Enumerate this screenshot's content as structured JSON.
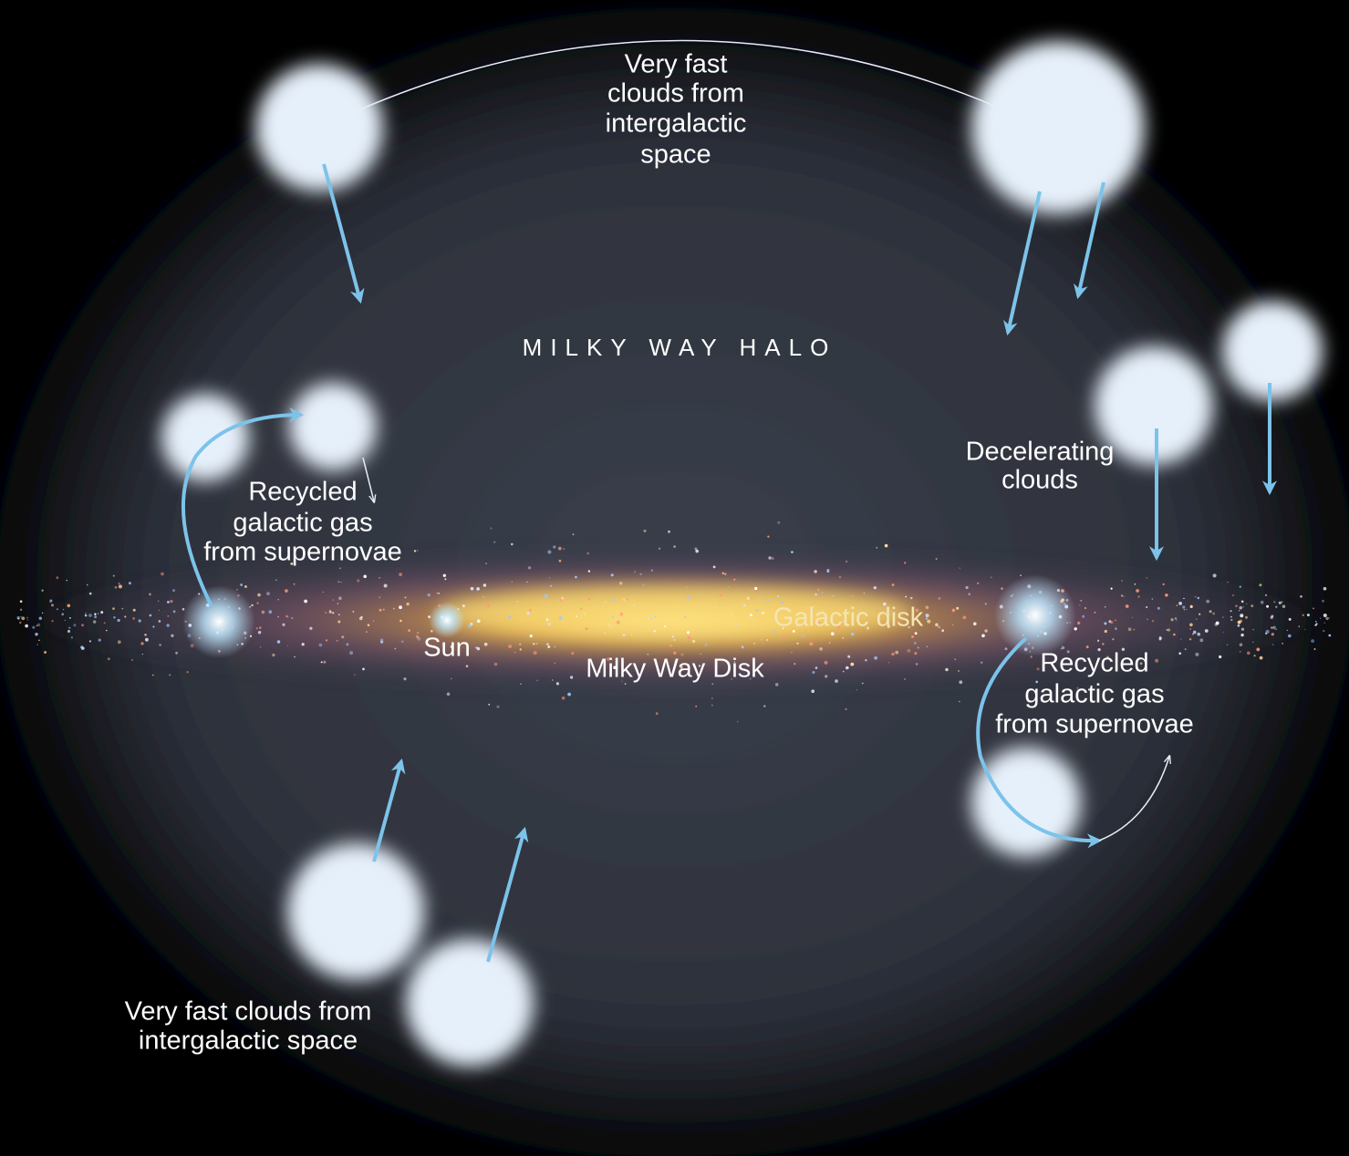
{
  "labels": {
    "top_clouds": [
      "Very fast",
      "clouds from",
      "intergalactic",
      "space"
    ],
    "halo": "MILKY WAY HALO",
    "left_recycled": [
      "Recycled",
      "galactic gas",
      "from supernovae"
    ],
    "decelerating": [
      "Decelerating",
      "clouds"
    ],
    "galactic_disk": "Galactic disk",
    "sun": "Sun",
    "disk": "Milky Way Disk",
    "right_recycled": [
      "Recycled",
      "galactic gas",
      "from supernovae"
    ],
    "bottom_clouds": [
      "Very fast clouds from",
      "intergalactic space"
    ]
  }
}
